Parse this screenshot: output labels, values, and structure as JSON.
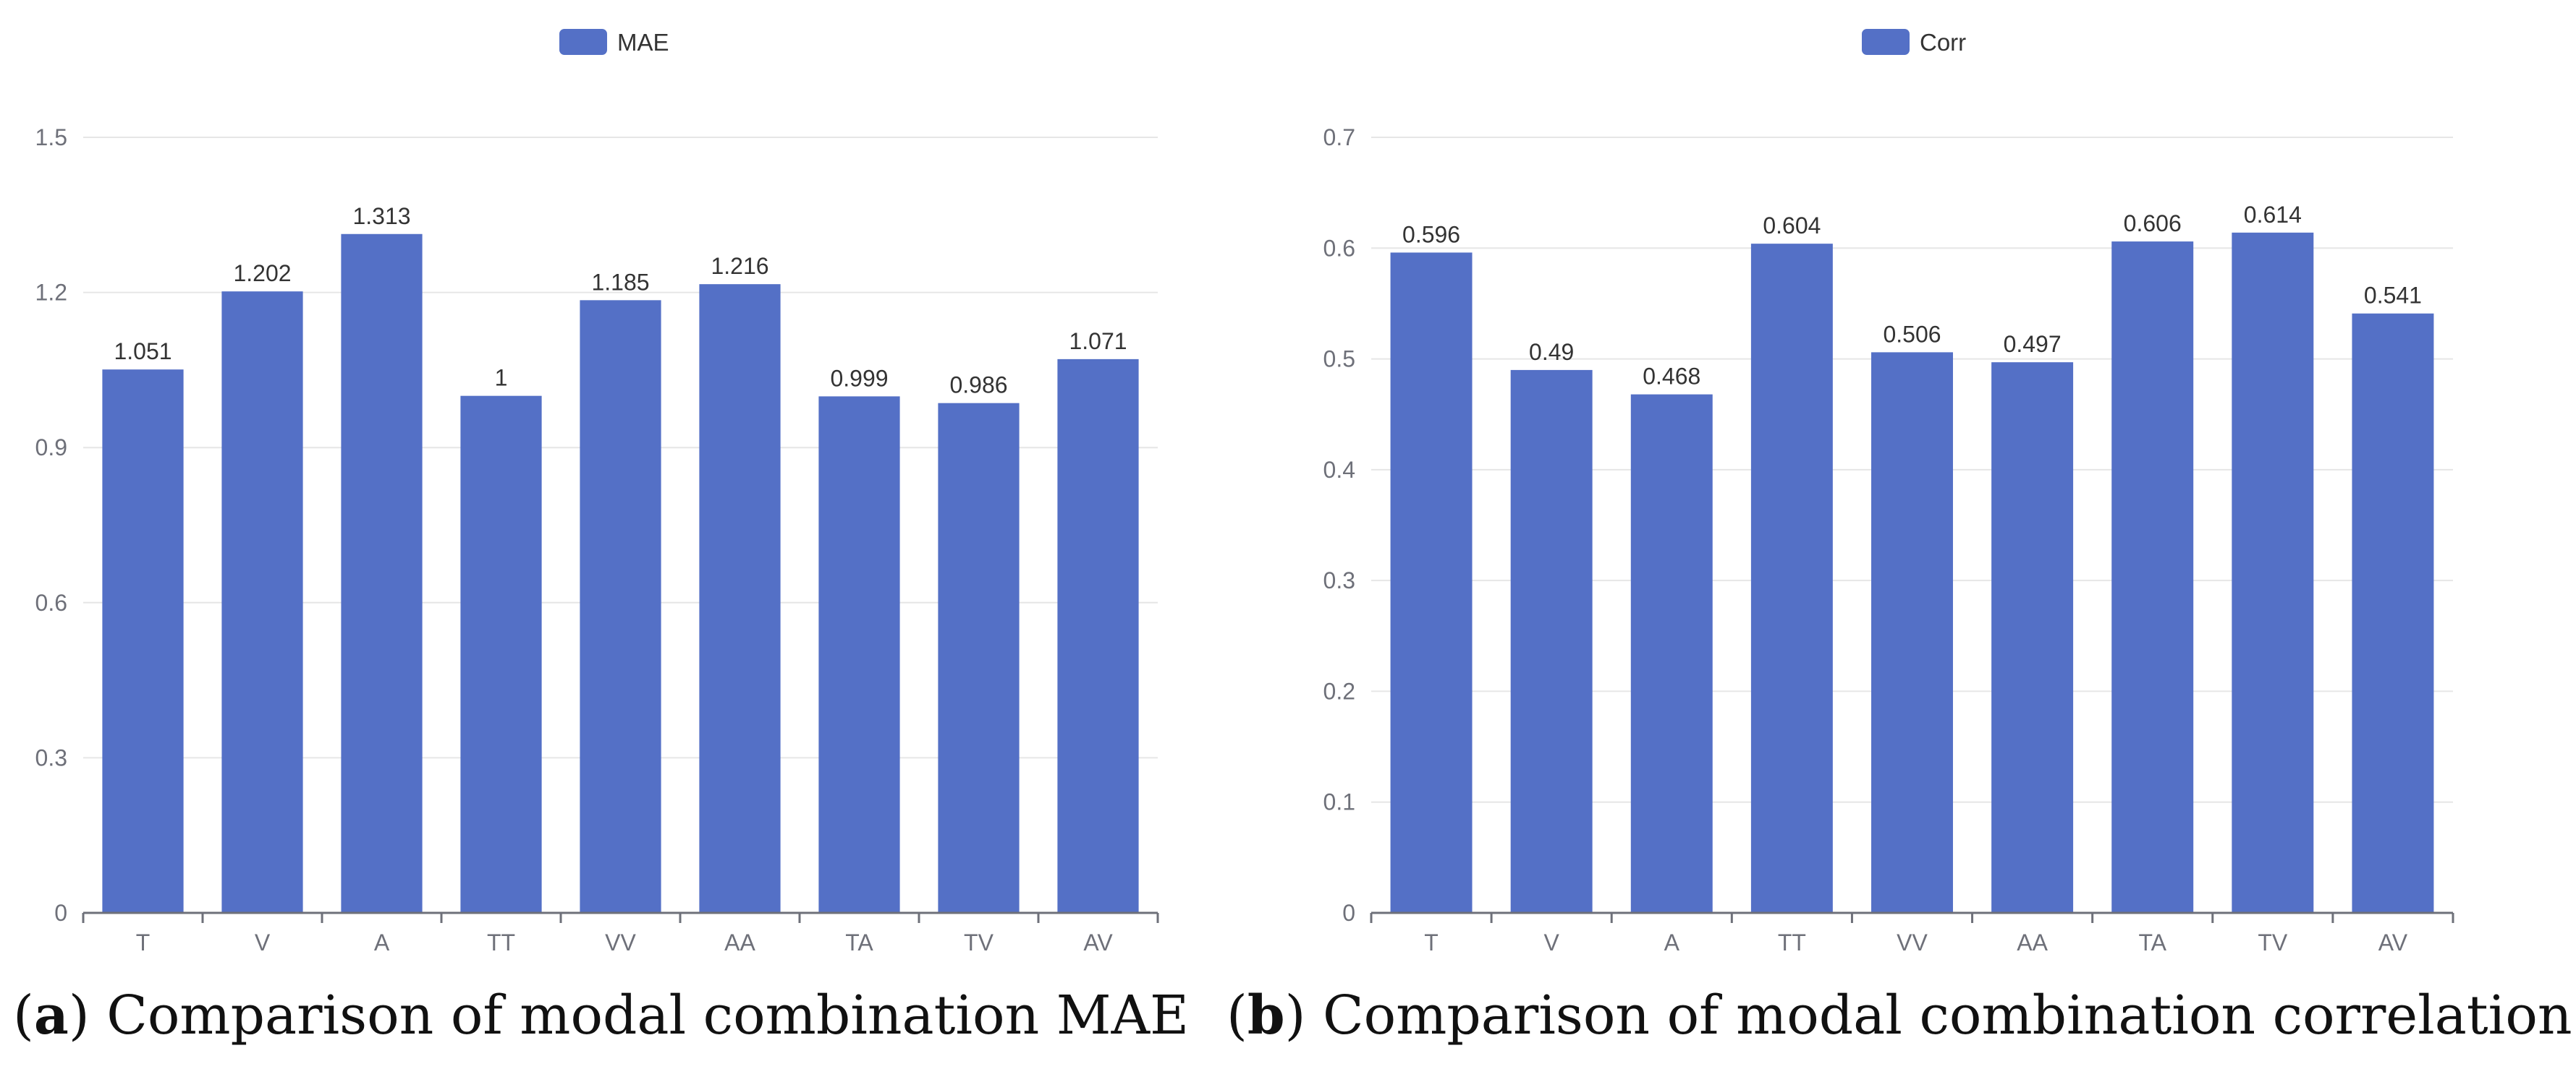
{
  "chart_data": [
    {
      "type": "bar",
      "title": "",
      "legend": "MAE",
      "legend_position": "top-center",
      "categories": [
        "T",
        "V",
        "A",
        "TT",
        "VV",
        "AA",
        "TA",
        "TV",
        "AV"
      ],
      "values": [
        1.051,
        1.202,
        1.313,
        1,
        1.185,
        1.216,
        0.999,
        0.986,
        1.071
      ],
      "value_labels": [
        "1.051",
        "1.202",
        "1.313",
        "1",
        "1.185",
        "1.216",
        "0.999",
        "0.986",
        "1.071"
      ],
      "yticks": [
        "0",
        "0.3",
        "0.6",
        "0.9",
        "1.2",
        "1.5"
      ],
      "ylim": [
        0,
        1.5
      ],
      "xlabel": "",
      "ylabel": "",
      "grid": true,
      "color": "#5470c6",
      "caption": {
        "tag": "a",
        "text": "Comparison of modal combination MAE"
      }
    },
    {
      "type": "bar",
      "title": "",
      "legend": "Corr",
      "legend_position": "top-center",
      "categories": [
        "T",
        "V",
        "A",
        "TT",
        "VV",
        "AA",
        "TA",
        "TV",
        "AV"
      ],
      "values": [
        0.596,
        0.49,
        0.468,
        0.604,
        0.506,
        0.497,
        0.606,
        0.614,
        0.541
      ],
      "value_labels": [
        "0.596",
        "0.49",
        "0.468",
        "0.604",
        "0.506",
        "0.497",
        "0.606",
        "0.614",
        "0.541"
      ],
      "yticks": [
        "0",
        "0.1",
        "0.2",
        "0.3",
        "0.4",
        "0.5",
        "0.6",
        "0.7"
      ],
      "ylim": [
        0,
        0.7
      ],
      "xlabel": "",
      "ylabel": "",
      "grid": true,
      "color": "#5470c6",
      "caption": {
        "tag": "b",
        "text": "Comparison of modal combination correlation"
      }
    }
  ]
}
